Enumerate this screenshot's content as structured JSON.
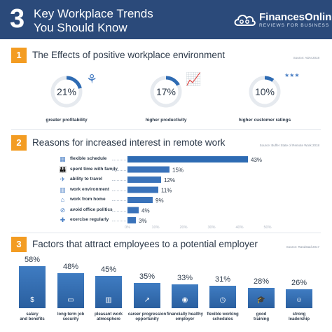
{
  "header": {
    "number": "3",
    "title_line1": "Key Workplace Trends",
    "title_line2": "You Should Know",
    "logo_name": "FinancesOnline",
    "logo_tagline": "REVIEWS FOR BUSINESS",
    "logo_icon": "cloud-icon"
  },
  "colors": {
    "header_bg": "#2b4a7a",
    "accent_orange": "#f39c22",
    "bar_blue": "#2e6bb3",
    "bar_light": "#4a7fc4",
    "donut_track": "#e6eaef"
  },
  "sections": [
    {
      "number": "1",
      "title": "The Effects of positive workplace environment",
      "source": "Source: ADN 2018"
    },
    {
      "number": "2",
      "title": "Reasons for increased interest in remote work",
      "source": "Source: Buffer State of Remote Work 2018"
    },
    {
      "number": "3",
      "title": "Factors that attract employees to a potential employer",
      "source": "Source: Randstad 2017"
    }
  ],
  "chart_data": [
    {
      "type": "pie",
      "categories": [
        "greater profitability",
        "higher productivity",
        "higher customer ratings"
      ],
      "values": [
        21,
        17,
        10
      ],
      "value_labels": [
        "21%",
        "17%",
        "10%"
      ],
      "icons": [
        "wheat-icon",
        "growth-chart-icon",
        "rating-stars-icon"
      ]
    },
    {
      "type": "bar",
      "orientation": "horizontal",
      "categories": [
        "flexible schedule",
        "spent time with family",
        "ability to travel",
        "work environment",
        "work from home",
        "avoid office politics",
        "exercise regularly"
      ],
      "values": [
        43,
        15,
        12,
        11,
        9,
        4,
        3
      ],
      "value_labels": [
        "43%",
        "15%",
        "12%",
        "11%",
        "9%",
        "4%",
        "3%"
      ],
      "icons": [
        "calendar-icon",
        "family-icon",
        "plane-icon",
        "building-icon",
        "home-icon",
        "no-entry-icon",
        "exercise-icon"
      ],
      "xlim": [
        0,
        50
      ],
      "ticks": [
        "0%",
        "10%",
        "20%",
        "30%",
        "40%",
        "50%"
      ]
    },
    {
      "type": "bar",
      "categories": [
        "salary and benefits",
        "long-term job security",
        "pleasant work atmosphere",
        "career progression opportunity",
        "financially healthy employer",
        "flexible working schedules",
        "good training",
        "strong leadership"
      ],
      "label_lines": [
        [
          "salary",
          "and benefits"
        ],
        [
          "long-term job",
          "security"
        ],
        [
          "pleasant work",
          "atmosphere"
        ],
        [
          "career progression",
          "opportunity"
        ],
        [
          "financially healthy",
          "employer"
        ],
        [
          "flexible working",
          "schedules"
        ],
        [
          "good",
          "training"
        ],
        [
          "strong",
          "leadership"
        ]
      ],
      "values": [
        58,
        48,
        45,
        35,
        33,
        31,
        28,
        26
      ],
      "value_labels": [
        "58%",
        "48%",
        "45%",
        "35%",
        "33%",
        "31%",
        "28%",
        "26%"
      ],
      "icons": [
        "money-bag-icon",
        "laptop-icon",
        "office-icon",
        "growth-icon",
        "piggy-bank-icon",
        "schedule-icon",
        "graduation-icon",
        "leader-icon"
      ],
      "ylim": [
        0,
        60
      ]
    }
  ]
}
